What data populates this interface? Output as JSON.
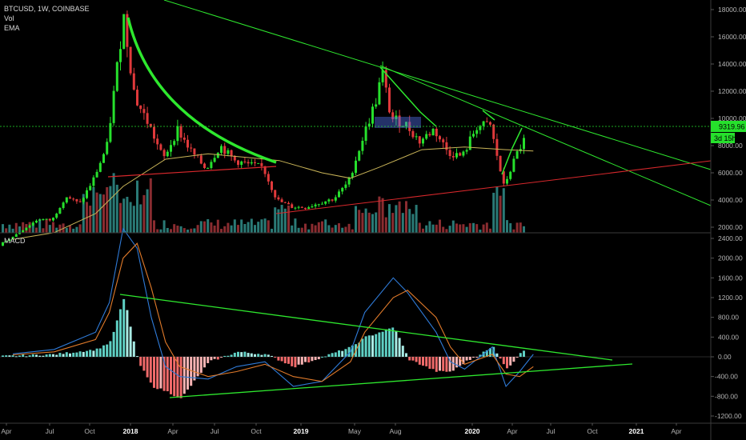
{
  "header": {
    "symbol_line": "BTCUSD, 1W, COINBASE",
    "indicators": [
      "Vol",
      "EMA"
    ]
  },
  "macd_label": "MACD",
  "price_tags": {
    "last_price": "9319.96",
    "countdown": "3d 15h"
  },
  "colors": {
    "background": "#000000",
    "up_candle": "#26e02c",
    "down_candle": "#e0393b",
    "ema": "#c9b458",
    "vol_up": "#2a7a76",
    "vol_down": "#8a2c30",
    "trendline": "#2ee82e",
    "support_line": "#d8282c",
    "macd_line": "#2f7bd8",
    "signal_line": "#e07a2a",
    "hist_pos": "#5fd0c4",
    "hist_neg": "#f06a6a"
  },
  "chart_data": [
    {
      "type": "candlestick",
      "title": "BTCUSD, 1W, COINBASE",
      "x_ticks": [
        "Apr",
        "Jul",
        "Oct",
        "2018",
        "Apr",
        "Jul",
        "Oct",
        "2019",
        "May",
        "Aug",
        "2020",
        "Apr",
        "Jul",
        "Oct",
        "2021",
        "Apr"
      ],
      "y_ticks": [
        2000,
        4000,
        6000,
        8000,
        10000,
        12000,
        14000,
        16000,
        18000
      ],
      "ylim": [
        1500,
        19000
      ],
      "series": [
        {
          "name": "EMA",
          "values": [
            [
              "2017-04",
              1100
            ],
            [
              "2017-07",
              1600
            ],
            [
              "2017-10",
              3000
            ],
            [
              "2017-12",
              5000
            ],
            [
              "2018-03",
              7000
            ],
            [
              "2018-06",
              7400
            ],
            [
              "2018-09",
              7100
            ],
            [
              "2018-11",
              6900
            ],
            [
              "2019-02",
              6000
            ],
            [
              "2019-04",
              5600
            ],
            [
              "2019-06",
              6400
            ],
            [
              "2019-09",
              7700
            ],
            [
              "2019-12",
              7900
            ],
            [
              "2020-03",
              7700
            ],
            [
              "2020-05",
              7600
            ]
          ]
        },
        {
          "name": "Vol"
        }
      ],
      "closes": [
        [
          "2017-04",
          1200
        ],
        [
          "2017-06",
          2600
        ],
        [
          "2017-07",
          2500
        ],
        [
          "2017-08",
          4300
        ],
        [
          "2017-09",
          3700
        ],
        [
          "2017-10",
          5500
        ],
        [
          "2017-11",
          8000
        ],
        [
          "2017-12",
          16000
        ],
        [
          "2017-12-17",
          18500
        ],
        [
          "2018-01",
          11500
        ],
        [
          "2018-02",
          9500
        ],
        [
          "2018-03",
          7000
        ],
        [
          "2018-04",
          9200
        ],
        [
          "2018-05",
          7500
        ],
        [
          "2018-06",
          6300
        ],
        [
          "2018-07",
          8000
        ],
        [
          "2018-08",
          6900
        ],
        [
          "2018-09",
          6600
        ],
        [
          "2018-10",
          6400
        ],
        [
          "2018-11",
          4000
        ],
        [
          "2018-12",
          3500
        ],
        [
          "2019-01",
          3450
        ],
        [
          "2019-02",
          3800
        ],
        [
          "2019-03",
          4100
        ],
        [
          "2019-04",
          5300
        ],
        [
          "2019-05",
          8500
        ],
        [
          "2019-06",
          11500
        ],
        [
          "2019-06-26",
          13500
        ],
        [
          "2019-07",
          10000
        ],
        [
          "2019-08",
          9600
        ],
        [
          "2019-09",
          8300
        ],
        [
          "2019-10",
          9200
        ],
        [
          "2019-11",
          7500
        ],
        [
          "2019-12",
          7200
        ],
        [
          "2020-01",
          9400
        ],
        [
          "2020-02",
          9500
        ],
        [
          "2020-03",
          5000
        ],
        [
          "2020-04",
          7500
        ],
        [
          "2020-05",
          9319.96
        ]
      ]
    },
    {
      "type": "line",
      "title": "MACD",
      "y_ticks": [
        -1200,
        -800,
        -400,
        0,
        400,
        800,
        1200,
        1600,
        2000,
        2400
      ],
      "ylim": [
        -1300,
        2450
      ],
      "series": [
        {
          "name": "MACD",
          "values": [
            [
              "2017-04",
              60
            ],
            [
              "2017-07",
              150
            ],
            [
              "2017-10",
              500
            ],
            [
              "2017-11",
              1100
            ],
            [
              "2017-12",
              2600
            ],
            [
              "2018-01",
              2200
            ],
            [
              "2018-02",
              800
            ],
            [
              "2018-03",
              -200
            ],
            [
              "2018-04",
              -400
            ],
            [
              "2018-06",
              -450
            ],
            [
              "2018-08",
              -200
            ],
            [
              "2018-10",
              -100
            ],
            [
              "2018-12",
              -600
            ],
            [
              "2019-02",
              -500
            ],
            [
              "2019-04",
              100
            ],
            [
              "2019-05",
              900
            ],
            [
              "2019-07",
              1600
            ],
            [
              "2019-08",
              1300
            ],
            [
              "2019-10",
              500
            ],
            [
              "2019-11",
              -100
            ],
            [
              "2019-12",
              -250
            ],
            [
              "2020-02",
              200
            ],
            [
              "2020-03",
              -600
            ],
            [
              "2020-04",
              -300
            ],
            [
              "2020-05",
              50
            ]
          ]
        },
        {
          "name": "Signal",
          "values": [
            [
              "2017-04",
              40
            ],
            [
              "2017-07",
              100
            ],
            [
              "2017-10",
              350
            ],
            [
              "2017-11",
              900
            ],
            [
              "2017-12",
              2000
            ],
            [
              "2018-01",
              2300
            ],
            [
              "2018-02",
              1400
            ],
            [
              "2018-03",
              300
            ],
            [
              "2018-04",
              -200
            ],
            [
              "2018-06",
              -400
            ],
            [
              "2018-08",
              -300
            ],
            [
              "2018-10",
              -150
            ],
            [
              "2018-12",
              -400
            ],
            [
              "2019-02",
              -500
            ],
            [
              "2019-04",
              -100
            ],
            [
              "2019-05",
              500
            ],
            [
              "2019-07",
              1200
            ],
            [
              "2019-08",
              1350
            ],
            [
              "2019-10",
              800
            ],
            [
              "2019-11",
              200
            ],
            [
              "2019-12",
              -150
            ],
            [
              "2020-02",
              50
            ],
            [
              "2020-03",
              -350
            ],
            [
              "2020-04",
              -400
            ],
            [
              "2020-05",
              -200
            ]
          ]
        },
        {
          "name": "Histogram",
          "values": [
            [
              "2017-04",
              20
            ],
            [
              "2017-07",
              50
            ],
            [
              "2017-10",
              150
            ],
            [
              "2017-11",
              300
            ],
            [
              "2017-12",
              1200
            ],
            [
              "2018-01",
              -100
            ],
            [
              "2018-02",
              -600
            ],
            [
              "2018-03",
              -700
            ],
            [
              "2018-04",
              -850
            ],
            [
              "2018-06",
              -100
            ],
            [
              "2018-08",
              100
            ],
            [
              "2018-10",
              50
            ],
            [
              "2018-12",
              -200
            ],
            [
              "2019-02",
              0
            ],
            [
              "2019-04",
              200
            ],
            [
              "2019-05",
              400
            ],
            [
              "2019-07",
              600
            ],
            [
              "2019-08",
              -50
            ],
            [
              "2019-10",
              -300
            ],
            [
              "2019-11",
              -300
            ],
            [
              "2019-12",
              -100
            ],
            [
              "2020-02",
              200
            ],
            [
              "2020-03",
              -250
            ],
            [
              "2020-04",
              100
            ],
            [
              "2020-05",
              200
            ]
          ]
        }
      ]
    }
  ]
}
